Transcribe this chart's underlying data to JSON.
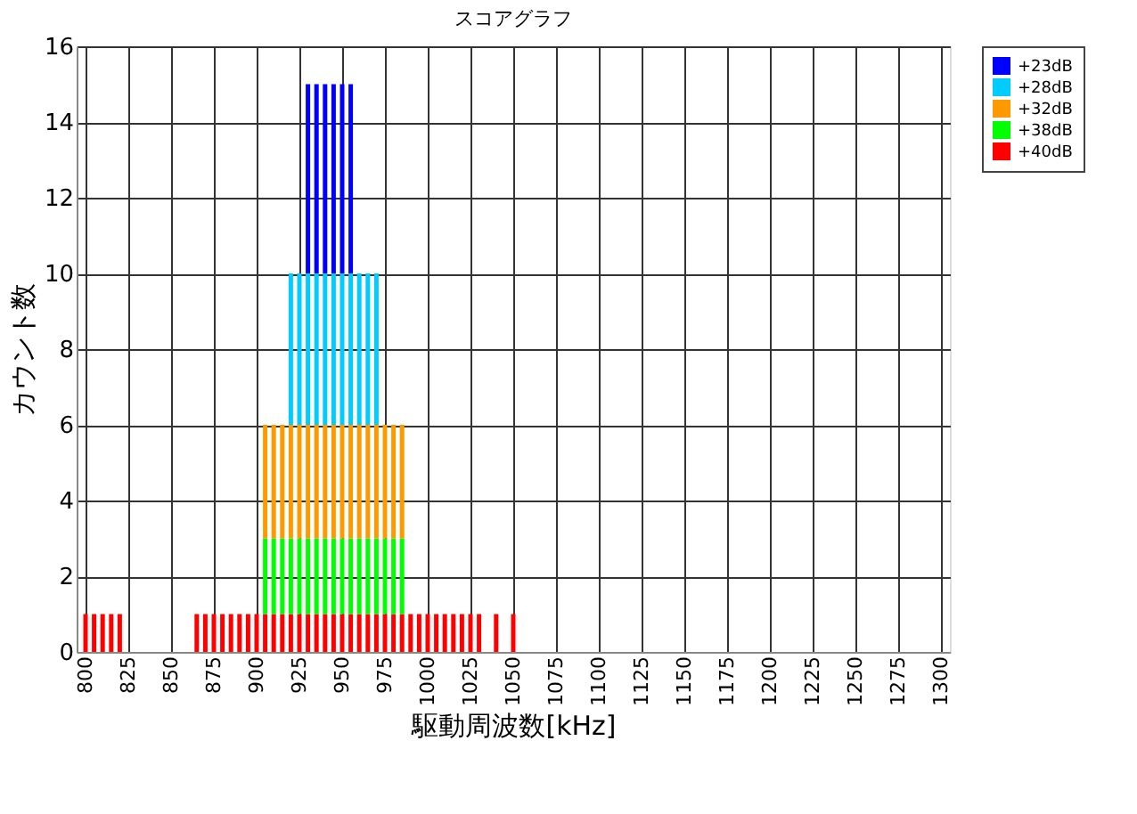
{
  "chart_data": {
    "type": "bar",
    "title": "スコアグラフ",
    "xlabel": "駆動周波数[kHz]",
    "ylabel": "カウント数",
    "x": [
      800,
      805,
      810,
      815,
      820,
      865,
      870,
      875,
      880,
      885,
      890,
      895,
      900,
      905,
      910,
      915,
      920,
      925,
      930,
      935,
      940,
      945,
      950,
      955,
      960,
      965,
      970,
      975,
      980,
      985,
      990,
      995,
      1000,
      1005,
      1010,
      1015,
      1020,
      1025,
      1030,
      1040,
      1050
    ],
    "stacked": true,
    "series": [
      {
        "name": "+40dB",
        "color": "#ff0000",
        "values": [
          1,
          1,
          1,
          1,
          1,
          1,
          1,
          1,
          1,
          1,
          1,
          1,
          1,
          1,
          1,
          1,
          1,
          1,
          1,
          1,
          1,
          1,
          1,
          1,
          1,
          1,
          1,
          1,
          1,
          1,
          1,
          1,
          1,
          1,
          1,
          1,
          1,
          1,
          1,
          1,
          1
        ]
      },
      {
        "name": "+38dB",
        "color": "#00ff00",
        "values": [
          null,
          null,
          null,
          null,
          null,
          null,
          null,
          null,
          null,
          null,
          null,
          null,
          null,
          2,
          2,
          2,
          2,
          2,
          2,
          2,
          2,
          2,
          2,
          2,
          2,
          2,
          2,
          2,
          2,
          2,
          null,
          null,
          null,
          null,
          null,
          null,
          null,
          null,
          null,
          null,
          null
        ]
      },
      {
        "name": "+32dB",
        "color": "#ff9900",
        "values": [
          null,
          null,
          null,
          null,
          null,
          null,
          null,
          null,
          null,
          null,
          null,
          null,
          null,
          3,
          3,
          3,
          3,
          3,
          3,
          3,
          3,
          3,
          3,
          3,
          3,
          3,
          3,
          3,
          3,
          3,
          null,
          null,
          null,
          null,
          null,
          null,
          null,
          null,
          null,
          null,
          null
        ]
      },
      {
        "name": "+28dB",
        "color": "#00ccff",
        "values": [
          null,
          null,
          null,
          null,
          null,
          null,
          null,
          null,
          null,
          null,
          null,
          null,
          null,
          null,
          null,
          null,
          4,
          4,
          4,
          4,
          4,
          4,
          4,
          4,
          4,
          4,
          4,
          null,
          null,
          null,
          null,
          null,
          null,
          null,
          null,
          null,
          null,
          null,
          null,
          null,
          null
        ]
      },
      {
        "name": "+23dB",
        "color": "#0000ff",
        "values": [
          null,
          null,
          null,
          null,
          null,
          null,
          null,
          null,
          null,
          null,
          null,
          null,
          null,
          null,
          null,
          null,
          null,
          null,
          5,
          5,
          5,
          5,
          5,
          5,
          null,
          null,
          null,
          null,
          null,
          null,
          null,
          null,
          null,
          null,
          null,
          null,
          null,
          null,
          null,
          null,
          null
        ]
      }
    ],
    "xlim": [
      800,
      1300
    ],
    "xticks": [
      800,
      825,
      850,
      875,
      900,
      925,
      950,
      975,
      1000,
      1025,
      1050,
      1075,
      1100,
      1125,
      1150,
      1175,
      1200,
      1225,
      1250,
      1275,
      1300
    ],
    "ylim": [
      0,
      16
    ],
    "yticks": [
      0,
      2,
      4,
      6,
      8,
      10,
      12,
      14,
      16
    ],
    "grid": true,
    "legend": "right"
  }
}
